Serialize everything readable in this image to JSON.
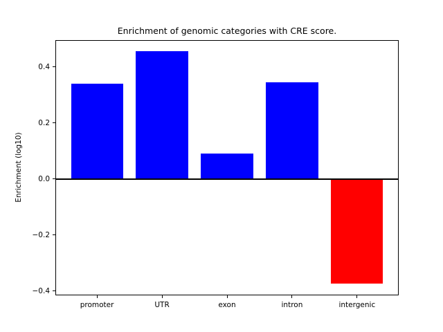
{
  "figure": {
    "background": "#ffffff",
    "axis_color": "#000000",
    "text_color": "#000000"
  },
  "chart_data": {
    "type": "bar",
    "title": "Enrichment of genomic categories with CRE score.",
    "xlabel": "",
    "ylabel": "Enrichment (log10)",
    "categories": [
      "promoter",
      "UTR",
      "exon",
      "intron",
      "intergenic"
    ],
    "values": [
      0.34,
      0.455,
      0.09,
      0.345,
      -0.375
    ],
    "bar_colors": [
      "#0000ff",
      "#0000ff",
      "#0000ff",
      "#0000ff",
      "#ff0000"
    ],
    "positive_color": "#0000ff",
    "negative_color": "#ff0000",
    "bar_width_fraction": 0.8,
    "xlim": [
      -0.64,
      4.64
    ],
    "ylim": [
      -0.4165,
      0.4965
    ],
    "yticks": [
      0.4,
      0.2,
      0.0,
      -0.2,
      -0.4
    ],
    "ytick_labels": [
      "0.4",
      "0.2",
      "0.0",
      "−0.2",
      "−0.4"
    ],
    "grid": false,
    "legend": null,
    "zero_line": true
  }
}
